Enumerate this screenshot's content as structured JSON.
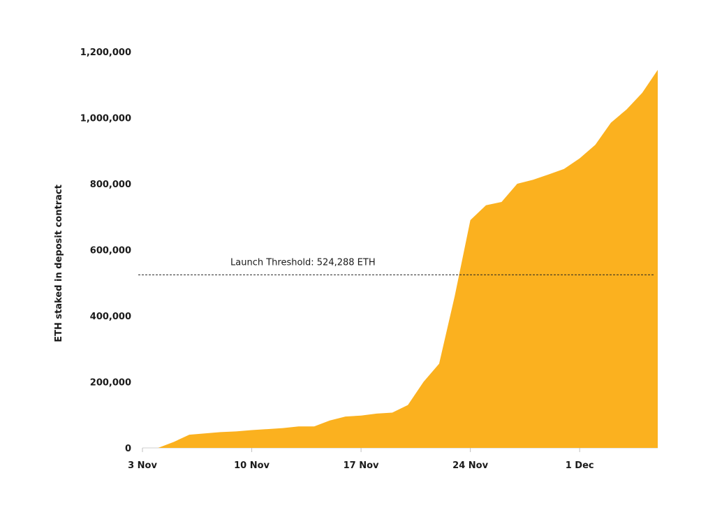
{
  "chart_data": {
    "type": "area",
    "title": "",
    "xlabel": "",
    "ylabel": "ETH staked in deposit contract",
    "ylim": [
      0,
      1200000
    ],
    "xlim": [
      "2020-11-03",
      "2020-12-06"
    ],
    "x_ticks": [
      {
        "date": "2020-11-03",
        "label": "3 Nov"
      },
      {
        "date": "2020-11-10",
        "label": "10 Nov"
      },
      {
        "date": "2020-11-17",
        "label": "17 Nov"
      },
      {
        "date": "2020-11-24",
        "label": "24 Nov"
      },
      {
        "date": "2020-12-01",
        "label": "1 Dec"
      }
    ],
    "y_ticks": [
      {
        "value": 0,
        "label": "0"
      },
      {
        "value": 200000,
        "label": "200,000"
      },
      {
        "value": 400000,
        "label": "400,000"
      },
      {
        "value": 600000,
        "label": "600,000"
      },
      {
        "value": 800000,
        "label": "800,000"
      },
      {
        "value": 1000000,
        "label": "1,000,000"
      },
      {
        "value": 1200000,
        "label": "1,200,000"
      }
    ],
    "grid": false,
    "legend": "none",
    "color": "#fbb11f",
    "series": [
      {
        "x": [
          "2020-11-04",
          "2020-11-05",
          "2020-11-06",
          "2020-11-07",
          "2020-11-08",
          "2020-11-09",
          "2020-11-10",
          "2020-11-11",
          "2020-11-12",
          "2020-11-13",
          "2020-11-14",
          "2020-11-15",
          "2020-11-16",
          "2020-11-17",
          "2020-11-18",
          "2020-11-19",
          "2020-11-20",
          "2020-11-21",
          "2020-11-22",
          "2020-11-23",
          "2020-11-24",
          "2020-11-25",
          "2020-11-26",
          "2020-11-27",
          "2020-11-28",
          "2020-11-29",
          "2020-11-30",
          "2020-12-01",
          "2020-12-02",
          "2020-12-03",
          "2020-12-04",
          "2020-12-05",
          "2020-12-06"
        ],
        "values": [
          0,
          18000,
          40000,
          44000,
          48000,
          50000,
          54000,
          57000,
          60000,
          65000,
          65000,
          83000,
          95000,
          98000,
          104000,
          107000,
          130000,
          200000,
          255000,
          460000,
          690000,
          735000,
          745000,
          800000,
          812000,
          828000,
          845000,
          877000,
          918000,
          985000,
          1025000,
          1075000,
          1145000
        ]
      }
    ],
    "annotations": [
      {
        "type": "hline",
        "value": 524288,
        "text": "Launch Threshold: 524,288 ETH",
        "style": "dashed"
      }
    ]
  }
}
